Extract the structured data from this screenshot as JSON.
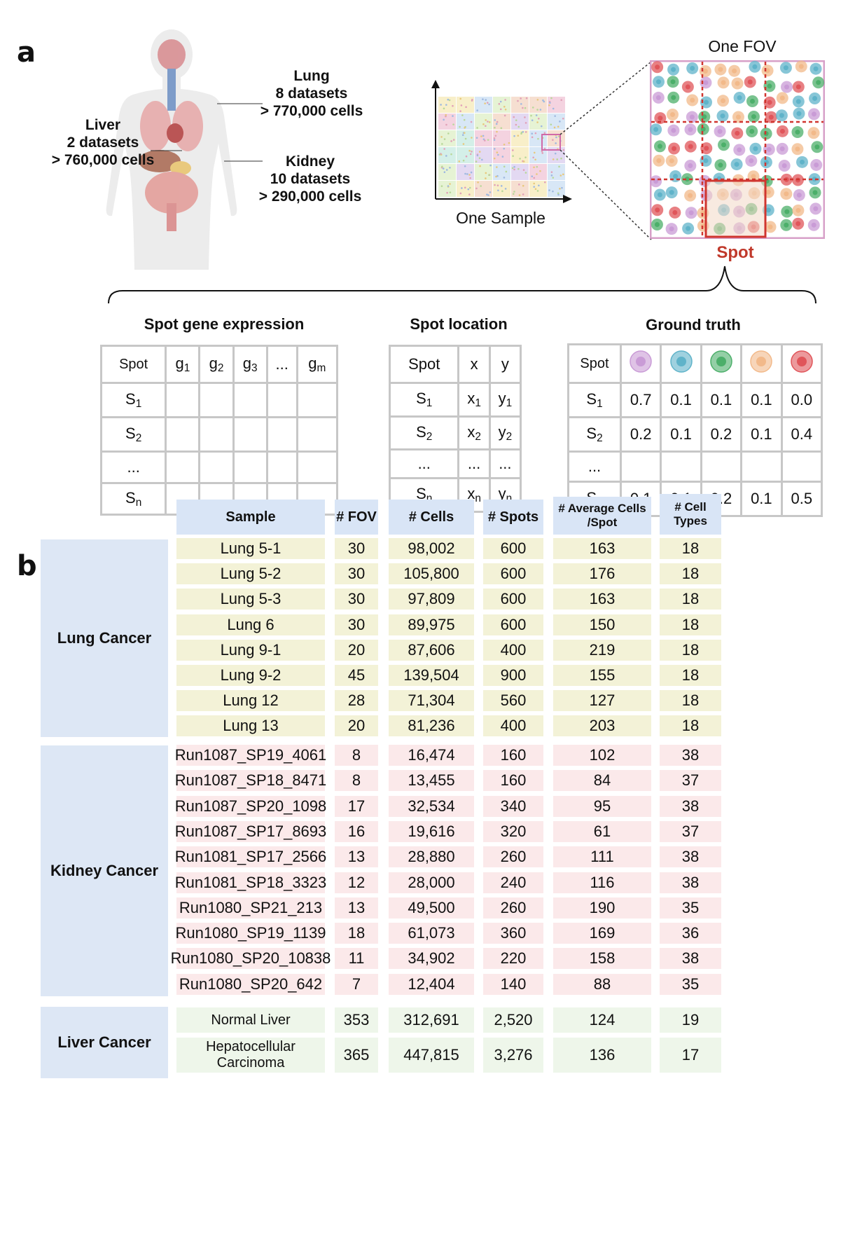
{
  "panel_a": {
    "letter": "a",
    "organs": {
      "lung": {
        "name": "Lung",
        "datasets": "8 datasets",
        "cells": "> 770,000 cells"
      },
      "liver": {
        "name": "Liver",
        "datasets": "2 datasets",
        "cells": "> 760,000 cells"
      },
      "kidney": {
        "name": "Kidney",
        "datasets": "10 datasets",
        "cells": "> 290,000 cells"
      }
    },
    "one_sample": "One Sample",
    "one_fov": "One FOV",
    "spot": "Spot",
    "tables": {
      "expression": {
        "title": "Spot gene expression",
        "header": [
          "Spot",
          "g1",
          "g2",
          "g3",
          "...",
          "gm"
        ],
        "rows": [
          "S1",
          "S2",
          "...",
          "Sn"
        ]
      },
      "location": {
        "title": "Spot location",
        "header": [
          "Spot",
          "x",
          "y"
        ],
        "rows": [
          [
            "S1",
            "x1",
            "y1"
          ],
          [
            "S2",
            "x2",
            "y2"
          ],
          [
            "...",
            "...",
            "..."
          ],
          [
            "Sn",
            "xn",
            "yn"
          ]
        ]
      },
      "ground_truth": {
        "title": "Ground truth",
        "header": "Spot",
        "cell_colors": [
          "#c99bd6",
          "#5fb3c9",
          "#4caf6a",
          "#f2b98a",
          "#e0555a"
        ],
        "rows": [
          [
            "S1",
            "0.7",
            "0.1",
            "0.1",
            "0.1",
            "0.0"
          ],
          [
            "S2",
            "0.2",
            "0.1",
            "0.2",
            "0.1",
            "0.4"
          ],
          [
            "...",
            "",
            "",
            "",
            "",
            ""
          ],
          [
            "Sn",
            "0.1",
            "0.1",
            "0.2",
            "0.1",
            "0.5"
          ]
        ]
      }
    }
  },
  "panel_b": {
    "letter": "b",
    "headers": {
      "sample": "Sample",
      "fov": "# FOV",
      "cells": "# Cells",
      "spots": "# Spots",
      "avg_line1": "# Average Cells",
      "avg_line2": "/Spot",
      "types_line1": "# Cell",
      "types_line2": "Types"
    },
    "groups": {
      "lung": "Lung Cancer",
      "kidney": "Kidney Cancer",
      "liver": "Liver Cancer"
    },
    "lung_rows": [
      [
        "Lung 5-1",
        "30",
        "98,002",
        "600",
        "163",
        "18"
      ],
      [
        "Lung 5-2",
        "30",
        "105,800",
        "600",
        "176",
        "18"
      ],
      [
        "Lung 5-3",
        "30",
        "97,809",
        "600",
        "163",
        "18"
      ],
      [
        "Lung 6",
        "30",
        "89,975",
        "600",
        "150",
        "18"
      ],
      [
        "Lung 9-1",
        "20",
        "87,606",
        "400",
        "219",
        "18"
      ],
      [
        "Lung 9-2",
        "45",
        "139,504",
        "900",
        "155",
        "18"
      ],
      [
        "Lung 12",
        "28",
        "71,304",
        "560",
        "127",
        "18"
      ],
      [
        "Lung 13",
        "20",
        "81,236",
        "400",
        "203",
        "18"
      ]
    ],
    "kidney_rows": [
      [
        "Run1087_SP19_4061",
        "8",
        "16,474",
        "160",
        "102",
        "38"
      ],
      [
        "Run1087_SP18_8471",
        "8",
        "13,455",
        "160",
        "84",
        "37"
      ],
      [
        "Run1087_SP20_1098",
        "17",
        "32,534",
        "340",
        "95",
        "38"
      ],
      [
        "Run1087_SP17_8693",
        "16",
        "19,616",
        "320",
        "61",
        "37"
      ],
      [
        "Run1081_SP17_2566",
        "13",
        "28,880",
        "260",
        "111",
        "38"
      ],
      [
        "Run1081_SP18_3323",
        "12",
        "28,000",
        "240",
        "116",
        "38"
      ],
      [
        "Run1080_SP21_213",
        "13",
        "49,500",
        "260",
        "190",
        "35"
      ],
      [
        "Run1080_SP19_1139",
        "18",
        "61,073",
        "360",
        "169",
        "36"
      ],
      [
        "Run1080_SP20_10838",
        "11",
        "34,902",
        "220",
        "158",
        "38"
      ],
      [
        "Run1080_SP20_642",
        "7",
        "12,404",
        "140",
        "88",
        "35"
      ]
    ],
    "liver_rows": [
      [
        "Normal Liver",
        "353",
        "312,691",
        "2,520",
        "124",
        "19"
      ],
      [
        "Hepatocellular Carcinoma",
        "365",
        "447,815",
        "3,276",
        "136",
        "17"
      ]
    ]
  }
}
